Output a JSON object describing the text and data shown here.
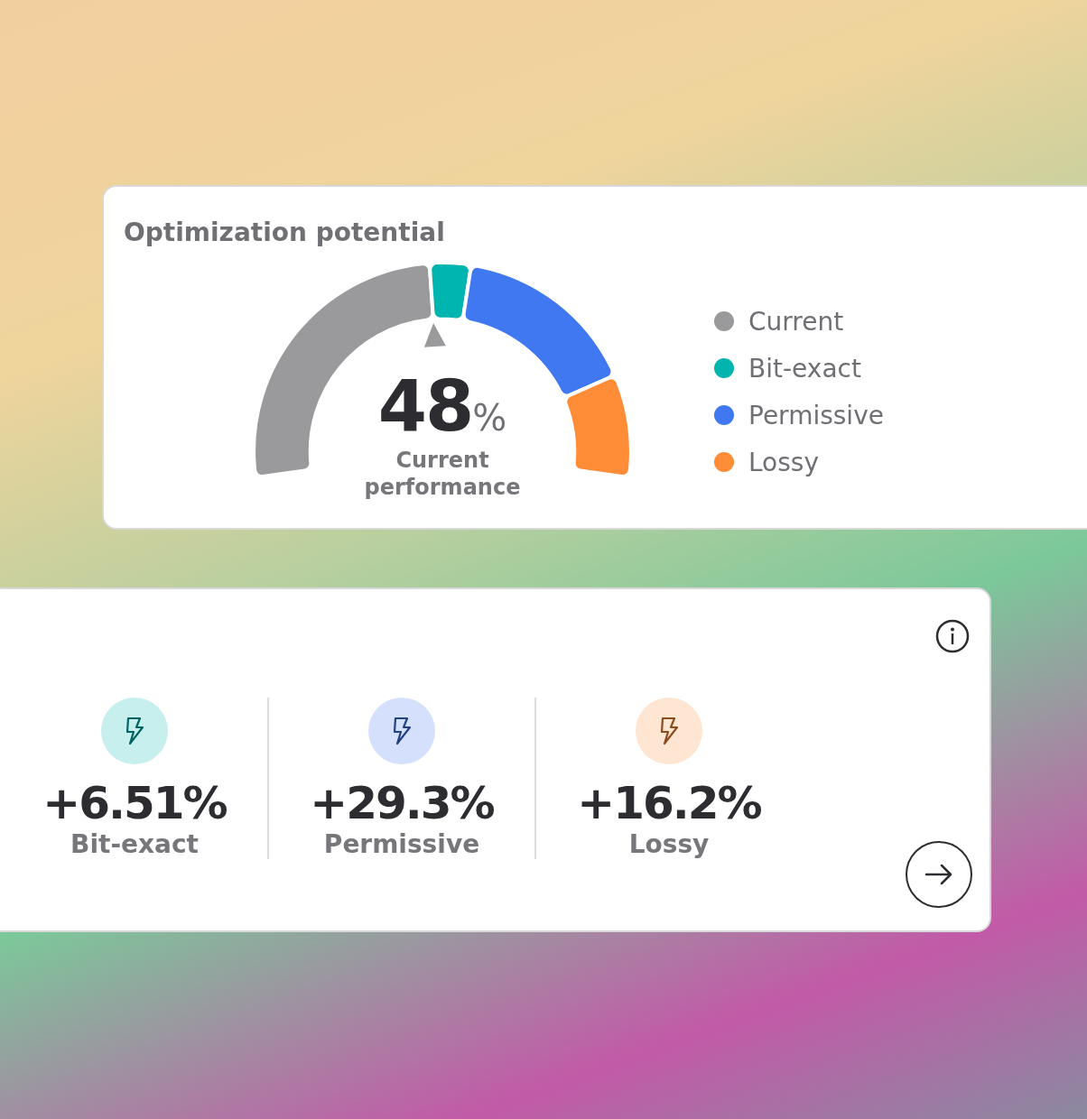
{
  "chart_data": {
    "type": "donut",
    "title": "Optimization potential",
    "categories": [
      "Current",
      "Bit-exact",
      "Permissive",
      "Lossy"
    ],
    "values": [
      48,
      6.51,
      29.3,
      16.2
    ],
    "colors": [
      "#9a999c",
      "#00b5b0",
      "#3f78f0",
      "#ff8c37"
    ],
    "annotations": [
      "48%",
      "Current performance",
      "+6.51%",
      "+29.3%",
      "+16.2%"
    ],
    "legend": "right"
  }
}
